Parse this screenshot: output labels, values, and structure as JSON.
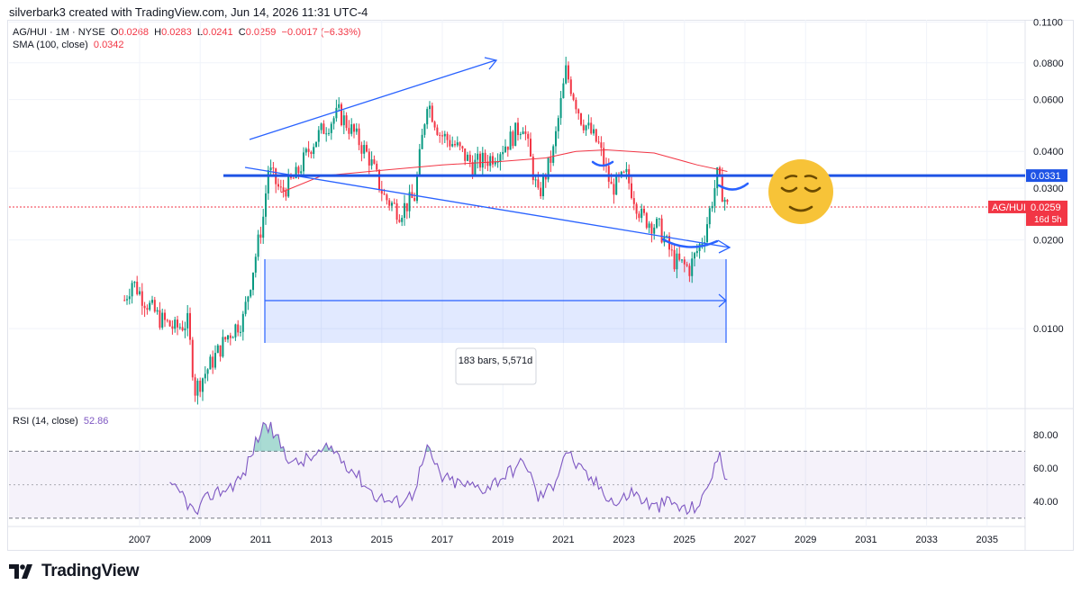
{
  "header": {
    "credit": "silverbark3 created with TradingView.com, Jun 14, 2026 11:31 UTC-4"
  },
  "legend": {
    "symbol": "AG/HUI · 1M · NYSE",
    "open_label": "O",
    "open": "0.0268",
    "high_label": "H",
    "high": "0.0283",
    "low_label": "L",
    "low": "0.0241",
    "close_label": "C",
    "close": "0.0259",
    "change": "−0.0017 (−6.33%)",
    "sma_label": "SMA (100, close)",
    "sma_value": "0.0342",
    "rsi_label": "RSI (14, close)",
    "rsi_value": "52.86"
  },
  "price_badges": {
    "level_label": "0.0331",
    "symbol_tag": "AG/HUI",
    "last_price": "0.0259",
    "countdown": "16d 5h"
  },
  "measure": {
    "label": "183 bars, 5,571d"
  },
  "brand": {
    "name": "TradingView"
  },
  "colors": {
    "up": "#089981",
    "down": "#f23645",
    "sma": "#f23645",
    "rsi": "#7e57c2",
    "drawing": "#2962ff",
    "level": "#1e53e5",
    "range_fill": "#2962ff",
    "emoji": "#f7c338"
  },
  "chart_data": {
    "type": "candlestick",
    "scale": "log",
    "ylim": [
      0.0055,
      0.112
    ],
    "y_ticks": [
      "0.1100",
      "0.0800",
      "0.0600",
      "0.0400",
      "0.0300",
      "0.0200",
      "0.0100"
    ],
    "x_ticks": [
      "2007",
      "2009",
      "2011",
      "2013",
      "2015",
      "2017",
      "2019",
      "2021",
      "2023",
      "2025",
      "2027",
      "2029",
      "2031",
      "2033",
      "2035"
    ],
    "price_path": [
      [
        "2006-07",
        0.0125
      ],
      [
        "2006-10",
        0.0145
      ],
      [
        "2007-03",
        0.0125
      ],
      [
        "2007-09",
        0.0108
      ],
      [
        "2008-03",
        0.01
      ],
      [
        "2008-08",
        0.0105
      ],
      [
        "2008-11",
        0.0062
      ],
      [
        "2009-06",
        0.0078
      ],
      [
        "2009-12",
        0.0095
      ],
      [
        "2010-06",
        0.0108
      ],
      [
        "2010-10",
        0.016
      ],
      [
        "2011-02",
        0.024
      ],
      [
        "2011-04",
        0.035
      ],
      [
        "2011-09",
        0.029
      ],
      [
        "2012-03",
        0.033
      ],
      [
        "2012-09",
        0.042
      ],
      [
        "2013-02",
        0.048
      ],
      [
        "2013-08",
        0.054
      ],
      [
        "2014-02",
        0.046
      ],
      [
        "2014-08",
        0.038
      ],
      [
        "2015-02",
        0.028
      ],
      [
        "2015-08",
        0.025
      ],
      [
        "2016-02",
        0.028
      ],
      [
        "2016-07",
        0.06
      ],
      [
        "2016-12",
        0.046
      ],
      [
        "2017-06",
        0.042
      ],
      [
        "2018-01",
        0.036
      ],
      [
        "2018-08",
        0.038
      ],
      [
        "2019-03",
        0.043
      ],
      [
        "2019-09",
        0.05
      ],
      [
        "2020-03",
        0.028
      ],
      [
        "2020-09",
        0.04
      ],
      [
        "2021-02",
        0.075
      ],
      [
        "2021-08",
        0.052
      ],
      [
        "2022-03",
        0.042
      ],
      [
        "2022-08",
        0.03
      ],
      [
        "2023-02",
        0.033
      ],
      [
        "2023-08",
        0.024
      ],
      [
        "2024-03",
        0.022
      ],
      [
        "2024-09",
        0.017
      ],
      [
        "2025-03",
        0.016
      ],
      [
        "2025-09",
        0.021
      ],
      [
        "2026-02",
        0.033
      ],
      [
        "2026-06",
        0.0259
      ]
    ],
    "sma_path": [
      [
        "2011-09",
        0.029
      ],
      [
        "2013-01",
        0.033
      ],
      [
        "2015-01",
        0.0345
      ],
      [
        "2017-01",
        0.036
      ],
      [
        "2019-01",
        0.037
      ],
      [
        "2020-06",
        0.038
      ],
      [
        "2021-06",
        0.04
      ],
      [
        "2022-06",
        0.0405
      ],
      [
        "2024-01",
        0.0395
      ],
      [
        "2025-06",
        0.036
      ],
      [
        "2026-06",
        0.0342
      ]
    ],
    "horizontal_level": 0.0331,
    "rsi": {
      "ylim": [
        25,
        95
      ],
      "ticks": [
        "80.00",
        "60.00",
        "40.00"
      ],
      "bands": [
        70,
        50,
        30
      ],
      "path": [
        [
          "2008-01",
          48
        ],
        [
          "2008-06",
          44
        ],
        [
          "2008-11",
          32
        ],
        [
          "2009-05",
          44
        ],
        [
          "2009-12",
          48
        ],
        [
          "2010-06",
          55
        ],
        [
          "2010-11",
          75
        ],
        [
          "2011-03",
          88
        ],
        [
          "2011-08",
          76
        ],
        [
          "2012-02",
          62
        ],
        [
          "2012-09",
          66
        ],
        [
          "2013-05",
          72
        ],
        [
          "2014-02",
          58
        ],
        [
          "2014-10",
          44
        ],
        [
          "2015-06",
          39
        ],
        [
          "2016-01",
          44
        ],
        [
          "2016-07",
          71
        ],
        [
          "2017-01",
          54
        ],
        [
          "2017-09",
          50
        ],
        [
          "2018-06",
          48
        ],
        [
          "2019-04",
          58
        ],
        [
          "2019-10",
          64
        ],
        [
          "2020-03",
          42
        ],
        [
          "2020-09",
          50
        ],
        [
          "2021-02",
          71
        ],
        [
          "2021-08",
          58
        ],
        [
          "2022-04",
          48
        ],
        [
          "2022-10",
          38
        ],
        [
          "2023-04",
          46
        ],
        [
          "2024-01",
          36
        ],
        [
          "2024-07",
          40
        ],
        [
          "2025-02",
          34
        ],
        [
          "2025-08",
          40
        ],
        [
          "2026-01",
          62
        ],
        [
          "2026-03",
          66
        ],
        [
          "2026-06",
          53
        ]
      ]
    }
  }
}
